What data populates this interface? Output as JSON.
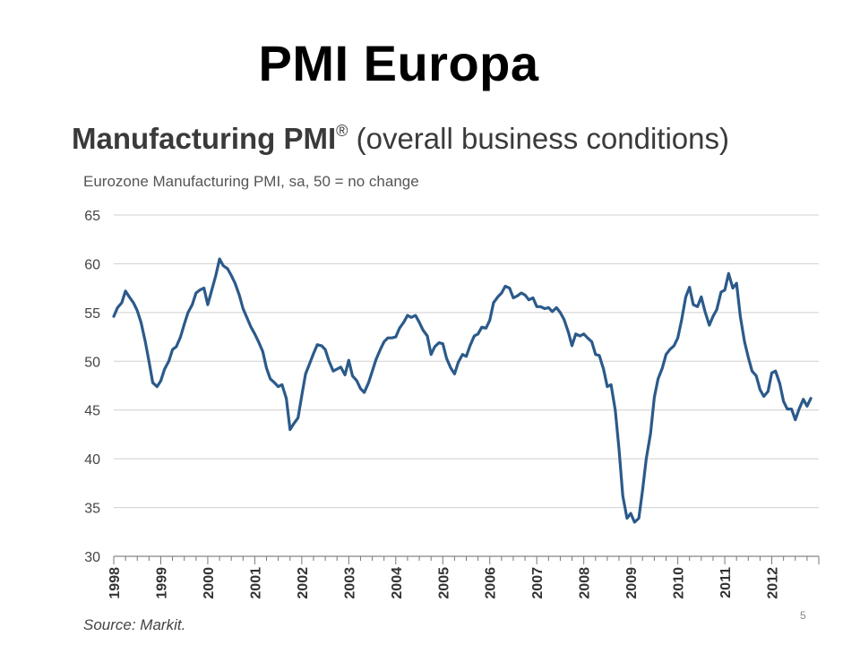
{
  "slide": {
    "title": "PMI Europa",
    "page_number": "5"
  },
  "chart_data": {
    "type": "line",
    "title": "Manufacturing PMI",
    "title_registered_mark": "®",
    "title_suffix": " (overall business conditions)",
    "subtitle": "Eurozone Manufacturing PMI, sa, 50 = no change",
    "source": "Source: Markit.",
    "ylim": [
      30,
      65
    ],
    "xlim": [
      1998,
      2013
    ],
    "yticks": [
      30,
      35,
      40,
      45,
      50,
      55,
      60,
      65
    ],
    "xticks": [
      "1998",
      "1999",
      "2000",
      "2001",
      "2002",
      "2003",
      "2004",
      "2005",
      "2006",
      "2007",
      "2008",
      "2009",
      "2010",
      "2011",
      "2012"
    ],
    "grid": true,
    "series": [
      {
        "color": "#2b5a8a",
        "points": [
          [
            1998.0,
            54.6
          ],
          [
            1998.08,
            55.5
          ],
          [
            1998.17,
            56.0
          ],
          [
            1998.25,
            57.2
          ],
          [
            1998.33,
            56.6
          ],
          [
            1998.42,
            56.0
          ],
          [
            1998.5,
            55.2
          ],
          [
            1998.58,
            54.0
          ],
          [
            1998.67,
            52.0
          ],
          [
            1998.75,
            50.0
          ],
          [
            1998.83,
            47.8
          ],
          [
            1998.92,
            47.4
          ],
          [
            1999.0,
            48.0
          ],
          [
            1999.08,
            49.2
          ],
          [
            1999.17,
            50.0
          ],
          [
            1999.25,
            51.2
          ],
          [
            1999.33,
            51.5
          ],
          [
            1999.42,
            52.5
          ],
          [
            1999.5,
            53.8
          ],
          [
            1999.58,
            55.0
          ],
          [
            1999.67,
            55.8
          ],
          [
            1999.75,
            57.0
          ],
          [
            1999.83,
            57.3
          ],
          [
            1999.92,
            57.5
          ],
          [
            2000.0,
            55.8
          ],
          [
            2000.08,
            57.2
          ],
          [
            2000.17,
            58.8
          ],
          [
            2000.25,
            60.5
          ],
          [
            2000.33,
            59.8
          ],
          [
            2000.42,
            59.5
          ],
          [
            2000.5,
            58.8
          ],
          [
            2000.58,
            58.0
          ],
          [
            2000.67,
            56.8
          ],
          [
            2000.75,
            55.4
          ],
          [
            2000.83,
            54.5
          ],
          [
            2000.92,
            53.5
          ],
          [
            2001.0,
            52.8
          ],
          [
            2001.08,
            52.0
          ],
          [
            2001.17,
            51.0
          ],
          [
            2001.25,
            49.3
          ],
          [
            2001.33,
            48.2
          ],
          [
            2001.42,
            47.8
          ],
          [
            2001.5,
            47.4
          ],
          [
            2001.58,
            47.6
          ],
          [
            2001.67,
            46.2
          ],
          [
            2001.75,
            43.0
          ],
          [
            2001.83,
            43.6
          ],
          [
            2001.92,
            44.2
          ],
          [
            2002.0,
            46.5
          ],
          [
            2002.08,
            48.7
          ],
          [
            2002.17,
            49.8
          ],
          [
            2002.25,
            50.8
          ],
          [
            2002.33,
            51.7
          ],
          [
            2002.42,
            51.6
          ],
          [
            2002.5,
            51.2
          ],
          [
            2002.58,
            50.0
          ],
          [
            2002.67,
            49.0
          ],
          [
            2002.75,
            49.2
          ],
          [
            2002.83,
            49.4
          ],
          [
            2002.92,
            48.6
          ],
          [
            2003.0,
            50.1
          ],
          [
            2003.08,
            48.5
          ],
          [
            2003.17,
            48.0
          ],
          [
            2003.25,
            47.2
          ],
          [
            2003.33,
            46.8
          ],
          [
            2003.42,
            47.8
          ],
          [
            2003.5,
            49.0
          ],
          [
            2003.58,
            50.2
          ],
          [
            2003.67,
            51.2
          ],
          [
            2003.75,
            52.0
          ],
          [
            2003.83,
            52.4
          ],
          [
            2003.92,
            52.4
          ],
          [
            2004.0,
            52.5
          ],
          [
            2004.08,
            53.4
          ],
          [
            2004.17,
            54.0
          ],
          [
            2004.25,
            54.7
          ],
          [
            2004.33,
            54.5
          ],
          [
            2004.42,
            54.7
          ],
          [
            2004.5,
            54.0
          ],
          [
            2004.58,
            53.2
          ],
          [
            2004.67,
            52.6
          ],
          [
            2004.75,
            50.7
          ],
          [
            2004.83,
            51.5
          ],
          [
            2004.92,
            51.9
          ],
          [
            2005.0,
            51.8
          ],
          [
            2005.08,
            50.3
          ],
          [
            2005.17,
            49.3
          ],
          [
            2005.25,
            48.7
          ],
          [
            2005.33,
            49.9
          ],
          [
            2005.42,
            50.7
          ],
          [
            2005.5,
            50.5
          ],
          [
            2005.58,
            51.6
          ],
          [
            2005.67,
            52.6
          ],
          [
            2005.75,
            52.8
          ],
          [
            2005.83,
            53.5
          ],
          [
            2005.92,
            53.4
          ],
          [
            2006.0,
            54.2
          ],
          [
            2006.08,
            56.0
          ],
          [
            2006.17,
            56.6
          ],
          [
            2006.25,
            57.0
          ],
          [
            2006.33,
            57.7
          ],
          [
            2006.42,
            57.5
          ],
          [
            2006.5,
            56.5
          ],
          [
            2006.58,
            56.7
          ],
          [
            2006.67,
            57.0
          ],
          [
            2006.75,
            56.8
          ],
          [
            2006.83,
            56.3
          ],
          [
            2006.92,
            56.5
          ],
          [
            2007.0,
            55.6
          ],
          [
            2007.08,
            55.6
          ],
          [
            2007.17,
            55.4
          ],
          [
            2007.25,
            55.5
          ],
          [
            2007.33,
            55.1
          ],
          [
            2007.42,
            55.5
          ],
          [
            2007.5,
            55.0
          ],
          [
            2007.58,
            54.3
          ],
          [
            2007.67,
            53.0
          ],
          [
            2007.75,
            51.6
          ],
          [
            2007.83,
            52.8
          ],
          [
            2007.92,
            52.6
          ],
          [
            2008.0,
            52.8
          ],
          [
            2008.08,
            52.4
          ],
          [
            2008.17,
            52.0
          ],
          [
            2008.25,
            50.7
          ],
          [
            2008.33,
            50.6
          ],
          [
            2008.42,
            49.2
          ],
          [
            2008.5,
            47.4
          ],
          [
            2008.58,
            47.6
          ],
          [
            2008.67,
            45.0
          ],
          [
            2008.75,
            41.0
          ],
          [
            2008.83,
            36.2
          ],
          [
            2008.92,
            33.9
          ],
          [
            2009.0,
            34.4
          ],
          [
            2009.08,
            33.5
          ],
          [
            2009.17,
            33.9
          ],
          [
            2009.25,
            36.8
          ],
          [
            2009.33,
            40.0
          ],
          [
            2009.42,
            42.6
          ],
          [
            2009.5,
            46.3
          ],
          [
            2009.58,
            48.2
          ],
          [
            2009.67,
            49.3
          ],
          [
            2009.75,
            50.7
          ],
          [
            2009.83,
            51.2
          ],
          [
            2009.92,
            51.6
          ],
          [
            2010.0,
            52.4
          ],
          [
            2010.08,
            54.2
          ],
          [
            2010.17,
            56.6
          ],
          [
            2010.25,
            57.6
          ],
          [
            2010.33,
            55.8
          ],
          [
            2010.42,
            55.6
          ],
          [
            2010.5,
            56.6
          ],
          [
            2010.58,
            55.1
          ],
          [
            2010.67,
            53.7
          ],
          [
            2010.75,
            54.6
          ],
          [
            2010.83,
            55.3
          ],
          [
            2010.92,
            57.1
          ],
          [
            2011.0,
            57.3
          ],
          [
            2011.08,
            59.0
          ],
          [
            2011.17,
            57.5
          ],
          [
            2011.25,
            58.0
          ],
          [
            2011.33,
            54.6
          ],
          [
            2011.42,
            52.0
          ],
          [
            2011.5,
            50.4
          ],
          [
            2011.58,
            49.0
          ],
          [
            2011.67,
            48.5
          ],
          [
            2011.75,
            47.1
          ],
          [
            2011.83,
            46.4
          ],
          [
            2011.92,
            46.9
          ],
          [
            2012.0,
            48.8
          ],
          [
            2012.08,
            49.0
          ],
          [
            2012.17,
            47.7
          ],
          [
            2012.25,
            45.9
          ],
          [
            2012.33,
            45.1
          ],
          [
            2012.42,
            45.1
          ],
          [
            2012.5,
            44.0
          ],
          [
            2012.58,
            45.1
          ],
          [
            2012.67,
            46.1
          ],
          [
            2012.75,
            45.4
          ],
          [
            2012.83,
            46.2
          ]
        ]
      }
    ]
  }
}
